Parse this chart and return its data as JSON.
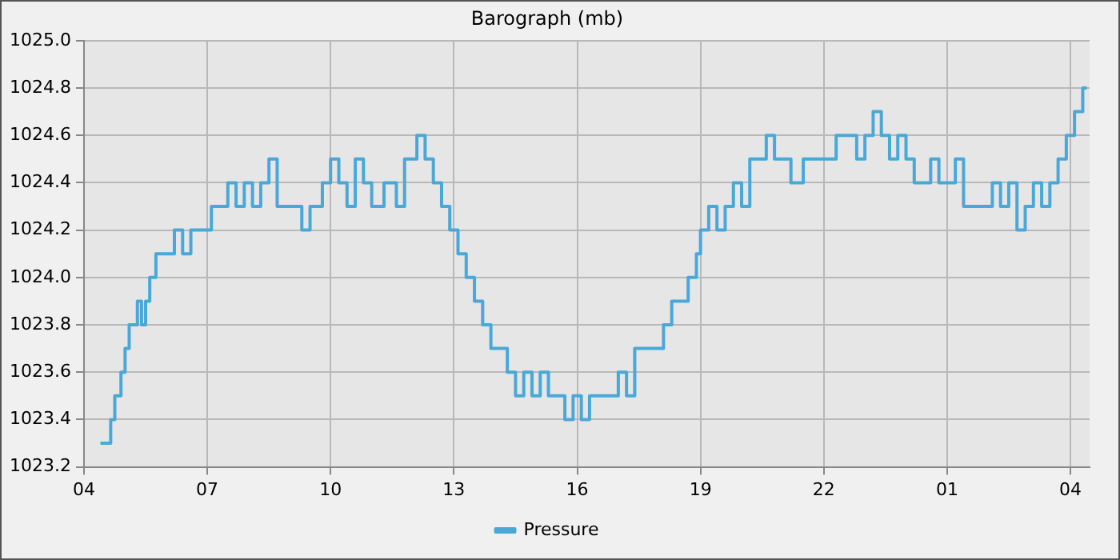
{
  "chart_data": {
    "type": "step",
    "title": "Barograph (mb)",
    "legend": "bottom",
    "grid": true,
    "line_style": "solid",
    "marker": "none",
    "xlim": [
      "--01-01T04:00",
      "--01-02T04:28"
    ],
    "ylim": [
      1023.2,
      1025.0
    ],
    "xticks": [
      {
        "value": "--01-01T04:00",
        "label": "04"
      },
      {
        "value": "--01-01T07:00",
        "label": "07"
      },
      {
        "value": "--01-01T10:00",
        "label": "10"
      },
      {
        "value": "--01-01T13:00",
        "label": "13"
      },
      {
        "value": "--01-01T16:00",
        "label": "16"
      },
      {
        "value": "--01-01T19:00",
        "label": "19"
      },
      {
        "value": "--01-01T22:00",
        "label": "22"
      },
      {
        "value": "--01-02T01:00",
        "label": "01"
      },
      {
        "value": "--01-02T04:00",
        "label": "04"
      }
    ],
    "yticks": [
      {
        "value": 1023.2,
        "label": "1023.2"
      },
      {
        "value": 1023.4,
        "label": "1023.4"
      },
      {
        "value": 1023.6,
        "label": "1023.6"
      },
      {
        "value": 1023.8,
        "label": "1023.8"
      },
      {
        "value": 1024.0,
        "label": "1024.0"
      },
      {
        "value": 1024.2,
        "label": "1024.2"
      },
      {
        "value": 1024.4,
        "label": "1024.4"
      },
      {
        "value": 1024.6,
        "label": "1024.6"
      },
      {
        "value": 1024.8,
        "label": "1024.8"
      },
      {
        "value": 1025.0,
        "label": "1025.0"
      }
    ],
    "series": [
      {
        "name": "Pressure",
        "color": "#4aa8d8",
        "x": [
          "--01-01T04:24",
          "--01-01T04:36",
          "--01-01T04:39",
          "--01-01T04:45",
          "--01-01T04:54",
          "--01-01T05:00",
          "--01-01T05:06",
          "--01-01T05:18",
          "--01-01T05:24",
          "--01-01T05:30",
          "--01-01T05:36",
          "--01-01T05:45",
          "--01-01T06:00",
          "--01-01T06:12",
          "--01-01T06:24",
          "--01-01T06:36",
          "--01-01T06:48",
          "--01-01T07:00",
          "--01-01T07:06",
          "--01-01T07:18",
          "--01-01T07:30",
          "--01-01T07:42",
          "--01-01T07:54",
          "--01-01T08:06",
          "--01-01T08:18",
          "--01-01T08:30",
          "--01-01T08:42",
          "--01-01T09:00",
          "--01-01T09:18",
          "--01-01T09:30",
          "--01-01T09:48",
          "--01-01T10:00",
          "--01-01T10:12",
          "--01-01T10:24",
          "--01-01T10:36",
          "--01-01T10:48",
          "--01-01T11:00",
          "--01-01T11:18",
          "--01-01T11:36",
          "--01-01T11:48",
          "--01-01T12:06",
          "--01-01T12:18",
          "--01-01T12:30",
          "--01-01T12:42",
          "--01-01T12:54",
          "--01-01T13:06",
          "--01-01T13:18",
          "--01-01T13:30",
          "--01-01T13:42",
          "--01-01T13:54",
          "--01-01T14:06",
          "--01-01T14:18",
          "--01-01T14:30",
          "--01-01T14:42",
          "--01-01T14:54",
          "--01-01T15:06",
          "--01-01T15:18",
          "--01-01T15:30",
          "--01-01T15:42",
          "--01-01T15:54",
          "--01-01T16:06",
          "--01-01T16:18",
          "--01-01T16:36",
          "--01-01T16:48",
          "--01-01T17:00",
          "--01-01T17:12",
          "--01-01T17:24",
          "--01-01T17:36",
          "--01-01T17:54",
          "--01-01T18:06",
          "--01-01T18:18",
          "--01-01T18:30",
          "--01-01T18:42",
          "--01-01T18:54",
          "--01-01T19:00",
          "--01-01T19:12",
          "--01-01T19:24",
          "--01-01T19:36",
          "--01-01T19:48",
          "--01-01T20:00",
          "--01-01T20:12",
          "--01-01T20:24",
          "--01-01T20:36",
          "--01-01T20:48",
          "--01-01T21:00",
          "--01-01T21:12",
          "--01-01T21:30",
          "--01-01T21:48",
          "--01-01T22:06",
          "--01-01T22:18",
          "--01-01T22:36",
          "--01-01T22:48",
          "--01-01T23:00",
          "--01-01T23:12",
          "--01-01T23:24",
          "--01-01T23:36",
          "--01-01T23:48",
          "--01-02T00:00",
          "--01-02T00:12",
          "--01-02T00:24",
          "--01-02T00:36",
          "--01-02T00:48",
          "--01-02T01:00",
          "--01-02T01:12",
          "--01-02T01:24",
          "--01-02T01:36",
          "--01-02T01:54",
          "--01-02T02:06",
          "--01-02T02:18",
          "--01-02T02:30",
          "--01-02T02:42",
          "--01-02T02:54",
          "--01-02T03:06",
          "--01-02T03:18",
          "--01-02T03:30",
          "--01-02T03:42",
          "--01-02T03:54",
          "--01-02T04:06",
          "--01-02T04:18",
          "--01-02T04:24"
        ],
        "values": [
          1023.3,
          1023.3,
          1023.4,
          1023.5,
          1023.6,
          1023.7,
          1023.8,
          1023.9,
          1023.8,
          1023.9,
          1024.0,
          1024.1,
          1024.1,
          1024.2,
          1024.1,
          1024.2,
          1024.2,
          1024.2,
          1024.3,
          1024.3,
          1024.4,
          1024.3,
          1024.4,
          1024.3,
          1024.4,
          1024.5,
          1024.3,
          1024.3,
          1024.2,
          1024.3,
          1024.4,
          1024.5,
          1024.4,
          1024.3,
          1024.5,
          1024.4,
          1024.3,
          1024.4,
          1024.3,
          1024.5,
          1024.6,
          1024.5,
          1024.4,
          1024.3,
          1024.2,
          1024.1,
          1024.0,
          1023.9,
          1023.8,
          1023.7,
          1023.7,
          1023.6,
          1023.5,
          1023.6,
          1023.5,
          1023.6,
          1023.5,
          1023.5,
          1023.4,
          1023.5,
          1023.4,
          1023.5,
          1023.5,
          1023.5,
          1023.6,
          1023.5,
          1023.7,
          1023.7,
          1023.7,
          1023.8,
          1023.9,
          1023.9,
          1024.0,
          1024.1,
          1024.2,
          1024.3,
          1024.2,
          1024.3,
          1024.4,
          1024.3,
          1024.5,
          1024.5,
          1024.6,
          1024.5,
          1024.5,
          1024.4,
          1024.5,
          1024.5,
          1024.5,
          1024.6,
          1024.6,
          1024.5,
          1024.6,
          1024.7,
          1024.6,
          1024.5,
          1024.6,
          1024.5,
          1024.4,
          1024.4,
          1024.5,
          1024.4,
          1024.4,
          1024.5,
          1024.3,
          1024.3,
          1024.3,
          1024.4,
          1024.3,
          1024.4,
          1024.2,
          1024.3,
          1024.4,
          1024.3,
          1024.4,
          1024.5,
          1024.6,
          1024.7,
          1024.8,
          1024.8
        ]
      }
    ]
  }
}
